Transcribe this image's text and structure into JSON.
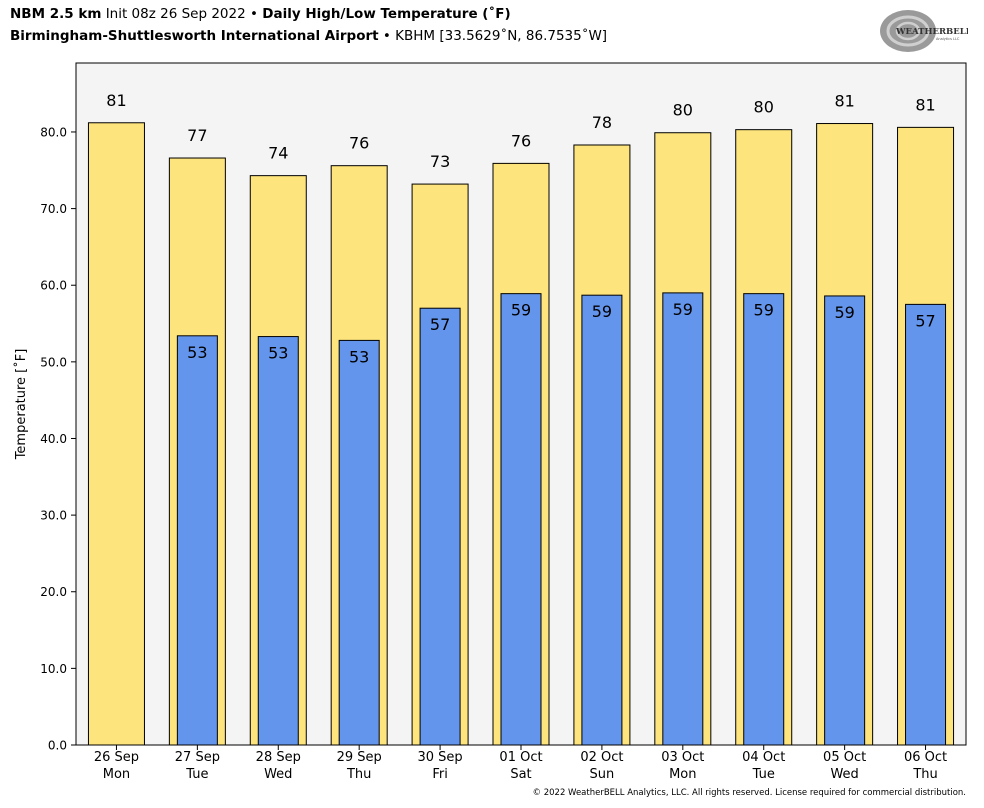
{
  "header": {
    "model": "NBM 2.5 km",
    "init": "Init 08z 26 Sep 2022",
    "bullet": "•",
    "product": "Daily High/Low Temperature (˚F)",
    "station": "Birmingham-Shuttlesworth International Airport",
    "station_code": "KBHM [33.5629˚N, 86.7535˚W]"
  },
  "logo": {
    "text": "WEATHERBELL",
    "small": "Analytics LLC"
  },
  "copyright": "© 2022 WeatherBELL Analytics, LLC. All rights reserved. License required for commercial distribution.",
  "colors": {
    "high": "#fde47c",
    "low": "#6495ed",
    "plot_bg": "#f4f4f4",
    "outline": "#000000"
  },
  "chart_data": {
    "type": "bar",
    "ylabel": "Temperature [˚F]",
    "ylim": [
      0,
      89
    ],
    "yticks": [
      "0.0",
      "10.0",
      "20.0",
      "30.0",
      "40.0",
      "50.0",
      "60.0",
      "70.0",
      "80.0"
    ],
    "grid": false,
    "categories": [
      [
        "26 Sep",
        "Mon"
      ],
      [
        "27 Sep",
        "Tue"
      ],
      [
        "28 Sep",
        "Wed"
      ],
      [
        "29 Sep",
        "Thu"
      ],
      [
        "30 Sep",
        "Fri"
      ],
      [
        "01 Oct",
        "Sat"
      ],
      [
        "02 Oct",
        "Sun"
      ],
      [
        "03 Oct",
        "Mon"
      ],
      [
        "04 Oct",
        "Tue"
      ],
      [
        "05 Oct",
        "Wed"
      ],
      [
        "06 Oct",
        "Thu"
      ]
    ],
    "series": [
      {
        "name": "High",
        "values": [
          81.2,
          76.6,
          74.3,
          75.6,
          73.2,
          75.9,
          78.3,
          79.9,
          80.3,
          81.1,
          80.6
        ],
        "labels": [
          "81",
          "77",
          "74",
          "76",
          "73",
          "76",
          "78",
          "80",
          "80",
          "81",
          "81"
        ]
      },
      {
        "name": "Low",
        "values": [
          null,
          53.4,
          53.3,
          52.8,
          57.0,
          58.9,
          58.7,
          59.0,
          58.9,
          58.6,
          57.5
        ],
        "labels": [
          "",
          "53",
          "53",
          "53",
          "57",
          "59",
          "59",
          "59",
          "59",
          "59",
          "57"
        ]
      }
    ]
  }
}
